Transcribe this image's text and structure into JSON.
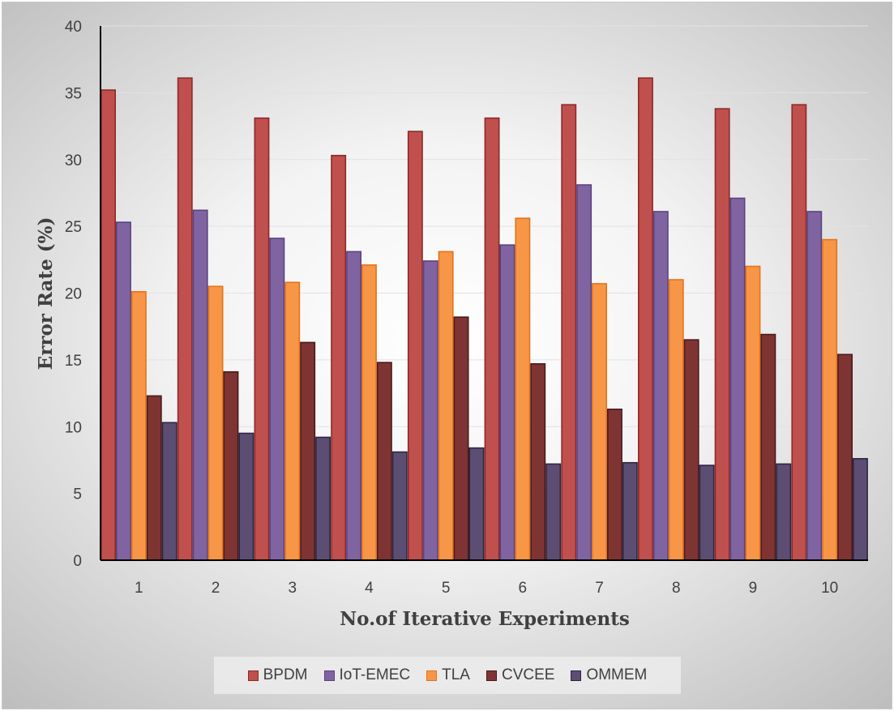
{
  "chart_data": {
    "type": "bar",
    "title": "",
    "xlabel": "No.of Iterative Experiments",
    "ylabel": "Error Rate (%)",
    "ylim": [
      0,
      40
    ],
    "yticks": [
      0,
      5,
      10,
      15,
      20,
      25,
      30,
      35,
      40
    ],
    "grid": true,
    "legend_position": "bottom",
    "categories": [
      "1",
      "2",
      "3",
      "4",
      "5",
      "6",
      "7",
      "8",
      "9",
      "10"
    ],
    "series": [
      {
        "name": "BPDM",
        "color": "#c0504d",
        "border": "#8b2a28",
        "values": [
          35.2,
          36.1,
          33.1,
          30.3,
          32.1,
          33.1,
          34.1,
          36.1,
          33.8,
          34.1
        ]
      },
      {
        "name": "IoT-EMEC",
        "color": "#8064a2",
        "border": "#5a4380",
        "values": [
          25.3,
          26.2,
          24.1,
          23.1,
          22.4,
          23.6,
          28.1,
          26.1,
          27.1,
          26.1
        ]
      },
      {
        "name": "TLA",
        "color": "#f79646",
        "border": "#e3731b",
        "values": [
          20.1,
          20.5,
          20.8,
          22.1,
          23.1,
          25.6,
          20.7,
          21.0,
          22.0,
          24.0
        ]
      },
      {
        "name": "CVCEE",
        "color": "#7f3434",
        "border": "#4a1a1a",
        "values": [
          12.3,
          14.1,
          16.3,
          14.8,
          18.2,
          14.7,
          11.3,
          16.5,
          16.9,
          15.4
        ]
      },
      {
        "name": "OMMEM",
        "color": "#5c4e73",
        "border": "#2e2540",
        "values": [
          10.3,
          9.5,
          9.2,
          8.1,
          8.4,
          7.2,
          7.3,
          7.1,
          7.2,
          7.6
        ]
      }
    ]
  }
}
